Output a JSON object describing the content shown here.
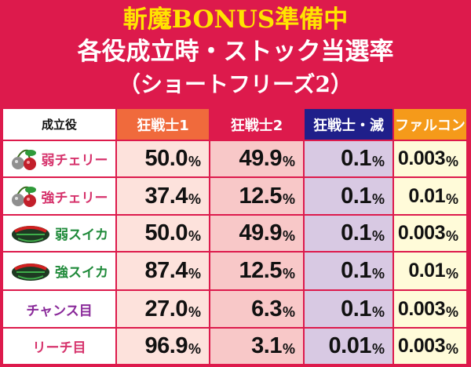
{
  "title": {
    "line1": "斬魔BONUS準備中",
    "line2": "各役成立時・ストック当選率",
    "line3": "（ショートフリーズ2）"
  },
  "table": {
    "corner_label": "成立役",
    "columns": [
      {
        "label": "狂戦士1",
        "header_color": "#f06a3c",
        "cell_color": "#fde2dc"
      },
      {
        "label": "狂戦士2",
        "header_color": "#dd1a4c",
        "cell_color": "#f8c8c8"
      },
      {
        "label": "狂戦士・滅",
        "header_color": "#1f1f8a",
        "cell_color": "#d8c9e3"
      },
      {
        "label": "ファルコン",
        "header_color": "#f59a1a",
        "cell_color": "#fffbd9"
      }
    ],
    "rows": [
      {
        "label": "弱チェリー",
        "label_color": "#d6336c",
        "icon": "cherry-icon",
        "values": [
          "50.0",
          "49.9",
          "0.1",
          "0.003"
        ]
      },
      {
        "label": "強チェリー",
        "label_color": "#d6336c",
        "icon": "cherry-icon",
        "values": [
          "37.4",
          "12.5",
          "0.1",
          "0.01"
        ]
      },
      {
        "label": "弱スイカ",
        "label_color": "#1f8a3a",
        "icon": "watermelon-icon",
        "values": [
          "50.0",
          "49.9",
          "0.1",
          "0.003"
        ]
      },
      {
        "label": "強スイカ",
        "label_color": "#1f8a3a",
        "icon": "watermelon-icon",
        "values": [
          "87.4",
          "12.5",
          "0.1",
          "0.01"
        ]
      },
      {
        "label": "チャンス目",
        "label_color": "#8a2a9a",
        "icon": "",
        "values": [
          "27.0",
          "6.3",
          "0.1",
          "0.003"
        ]
      },
      {
        "label": "リーチ目",
        "label_color": "#d6336c",
        "icon": "",
        "values": [
          "96.9",
          "3.1",
          "0.01",
          "0.003"
        ]
      }
    ],
    "unit": "%"
  }
}
